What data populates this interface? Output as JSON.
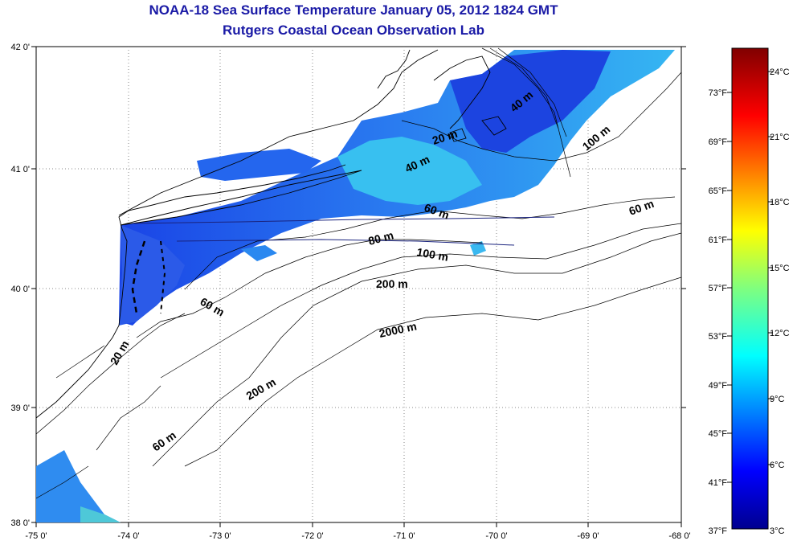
{
  "title_line1": "NOAA-18 Sea Surface Temperature January 05, 2012 1824 GMT",
  "title_line2": "Rutgers Coastal Ocean Observation Lab",
  "map": {
    "lon_ticks": [
      "-75 0'",
      "-74 0'",
      "-73 0'",
      "-72 0'",
      "-71 0'",
      "-70 0'",
      "-69 0'",
      "-68 0'"
    ],
    "lat_ticks": [
      "42 0'",
      "41 0'",
      "40 0'",
      "39 0'",
      "38 0'"
    ],
    "contour_labels": [
      "20 m",
      "40 m",
      "40 m",
      "60 m",
      "80 m",
      "100 m",
      "100 m",
      "60 m",
      "200 m",
      "2000 m",
      "60 m",
      "20 m",
      "200 m",
      "60 m"
    ]
  },
  "colorbar": {
    "fahrenheit": [
      "73°F",
      "69°F",
      "65°F",
      "61°F",
      "57°F",
      "53°F",
      "49°F",
      "45°F",
      "41°F",
      "37°F"
    ],
    "celsius": [
      "24°C",
      "21°C",
      "18°C",
      "15°C",
      "12°C",
      "9°C",
      "6°C",
      "3°C"
    ]
  }
}
